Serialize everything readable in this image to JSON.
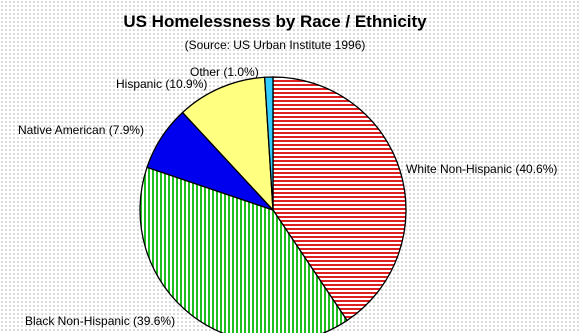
{
  "chart_data": {
    "type": "pie",
    "title": "US Homelessness by Race / Ethnicity",
    "subtitle": "(Source: US Urban Institute 1996)",
    "slices": [
      {
        "label": "White Non-Hispanic (40.6%)",
        "value": 40.6,
        "color": "#e02020",
        "pattern": "horizontal"
      },
      {
        "label": "Black Non-Hispanic (39.6%)",
        "value": 39.6,
        "color": "#1fbf1f",
        "pattern": "vertical"
      },
      {
        "label": "Native American (7.9%)",
        "value": 7.9,
        "color": "#0000ee",
        "pattern": "solid"
      },
      {
        "label": "Hispanic (10.9%)",
        "value": 10.9,
        "color": "#ffff80",
        "pattern": "solid"
      },
      {
        "label": "Other (1.0%)",
        "value": 1.0,
        "color": "#33ccff",
        "pattern": "solid"
      }
    ]
  }
}
